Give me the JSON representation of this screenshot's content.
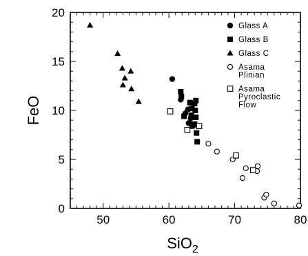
{
  "chart_data": {
    "type": "scatter",
    "xlabel": "SiO",
    "xlabel_subscript": "2",
    "ylabel": "FeO",
    "xlim": [
      45,
      80
    ],
    "ylim": [
      0,
      20
    ],
    "xticks": [
      "50",
      "60",
      "70",
      "80"
    ],
    "yticks": [
      "0",
      "5",
      "10",
      "15",
      "20"
    ],
    "legend_placement": "top-right",
    "grid": false,
    "series": [
      {
        "name": "Glass A",
        "marker": "circle-filled",
        "points": [
          [
            60.5,
            13.2
          ],
          [
            61.8,
            11.1
          ],
          [
            62.5,
            9.7
          ],
          [
            63.0,
            8.7
          ],
          [
            63.4,
            8.6
          ],
          [
            63.8,
            8.5
          ],
          [
            62.9,
            10.1
          ],
          [
            63.3,
            9.2
          ]
        ]
      },
      {
        "name": "Glass B",
        "marker": "square-filled",
        "points": [
          [
            61.8,
            11.9
          ],
          [
            61.9,
            11.4
          ],
          [
            63.2,
            10.8
          ],
          [
            63.9,
            10.7
          ],
          [
            64.1,
            11.0
          ],
          [
            63.5,
            10.2
          ],
          [
            64.0,
            10.0
          ],
          [
            62.3,
            9.4
          ],
          [
            63.4,
            9.5
          ],
          [
            64.1,
            9.3
          ],
          [
            63.9,
            8.6
          ],
          [
            63.5,
            8.4
          ],
          [
            64.2,
            7.7
          ],
          [
            64.3,
            6.8
          ]
        ]
      },
      {
        "name": "Glass C",
        "marker": "triangle-filled",
        "points": [
          [
            48.0,
            18.7
          ],
          [
            52.2,
            15.8
          ],
          [
            52.9,
            14.3
          ],
          [
            53.3,
            13.3
          ],
          [
            54.2,
            14.0
          ],
          [
            53.0,
            12.6
          ],
          [
            54.3,
            12.2
          ],
          [
            55.4,
            10.9
          ]
        ]
      },
      {
        "name": "Asama\nPlinian",
        "marker": "circle-open",
        "points": [
          [
            66.0,
            6.6
          ],
          [
            67.3,
            5.8
          ],
          [
            69.7,
            5.0
          ],
          [
            71.2,
            3.1
          ],
          [
            71.7,
            4.1
          ],
          [
            73.5,
            4.3
          ],
          [
            73.4,
            3.8
          ],
          [
            74.5,
            1.1
          ],
          [
            74.8,
            1.4
          ],
          [
            76.0,
            0.5
          ],
          [
            79.8,
            0.3
          ]
        ]
      },
      {
        "name": "Asama\nPyroclastic\nFlow",
        "marker": "square-open",
        "points": [
          [
            60.2,
            9.9
          ],
          [
            62.8,
            8.0
          ],
          [
            64.6,
            8.4
          ],
          [
            70.2,
            5.4
          ],
          [
            72.8,
            3.9
          ]
        ]
      }
    ]
  }
}
